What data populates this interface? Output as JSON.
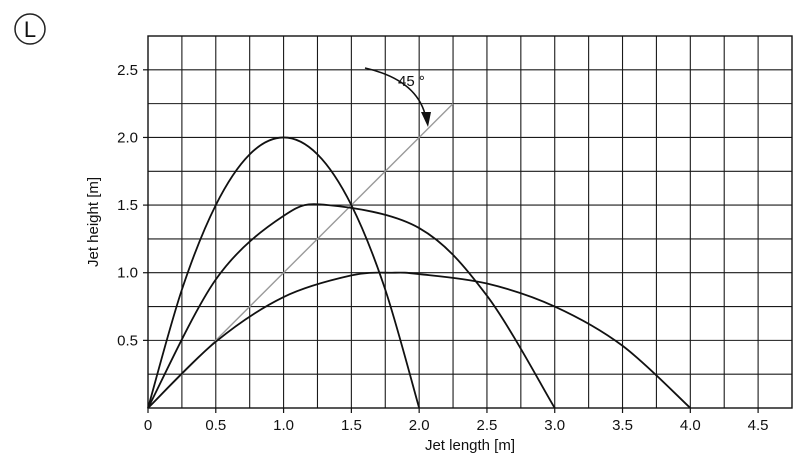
{
  "badge": {
    "letter": "L"
  },
  "chart_data": {
    "type": "line",
    "xlabel": "Jet length [m]",
    "ylabel": "Jet height [m]",
    "xlim": [
      0,
      4.75
    ],
    "ylim": [
      0,
      2.75
    ],
    "grid": true,
    "x_ticks": [
      0,
      0.5,
      1.0,
      1.5,
      2.0,
      2.5,
      3.0,
      3.5,
      4.0,
      4.5
    ],
    "x_tick_labels": [
      "0",
      "0.5",
      "1.0",
      "1.5",
      "2.0",
      "2.5",
      "3.0",
      "3.5",
      "4.0",
      "4.5"
    ],
    "y_ticks": [
      0.5,
      1.0,
      1.5,
      2.0,
      2.5
    ],
    "y_tick_labels": [
      "0.5",
      "1.0",
      "1.5",
      "2.0",
      "2.5"
    ],
    "series": [
      {
        "x": [
          0,
          0.25,
          0.5,
          0.75,
          1.0,
          1.25,
          1.5,
          1.75,
          2.0
        ],
        "y": [
          0,
          0.875,
          1.5,
          1.875,
          2.0,
          1.875,
          1.5,
          0.875,
          0
        ]
      },
      {
        "x": [
          0,
          0.5,
          1.0,
          1.33,
          2.0,
          2.5,
          3.0
        ],
        "y": [
          0,
          0.95,
          1.42,
          1.5,
          1.33,
          0.83,
          0
        ]
      },
      {
        "x": [
          0,
          0.5,
          1.0,
          1.5,
          1.8,
          2.0,
          2.5,
          3.0,
          3.5,
          4.0
        ],
        "y": [
          0,
          0.49,
          0.82,
          0.98,
          1.0,
          0.99,
          0.92,
          0.75,
          0.46,
          0
        ]
      }
    ],
    "reference_line": {
      "x": [
        0,
        2.25
      ],
      "y": [
        0,
        2.25
      ]
    },
    "annotation": {
      "text": "45 °"
    }
  }
}
